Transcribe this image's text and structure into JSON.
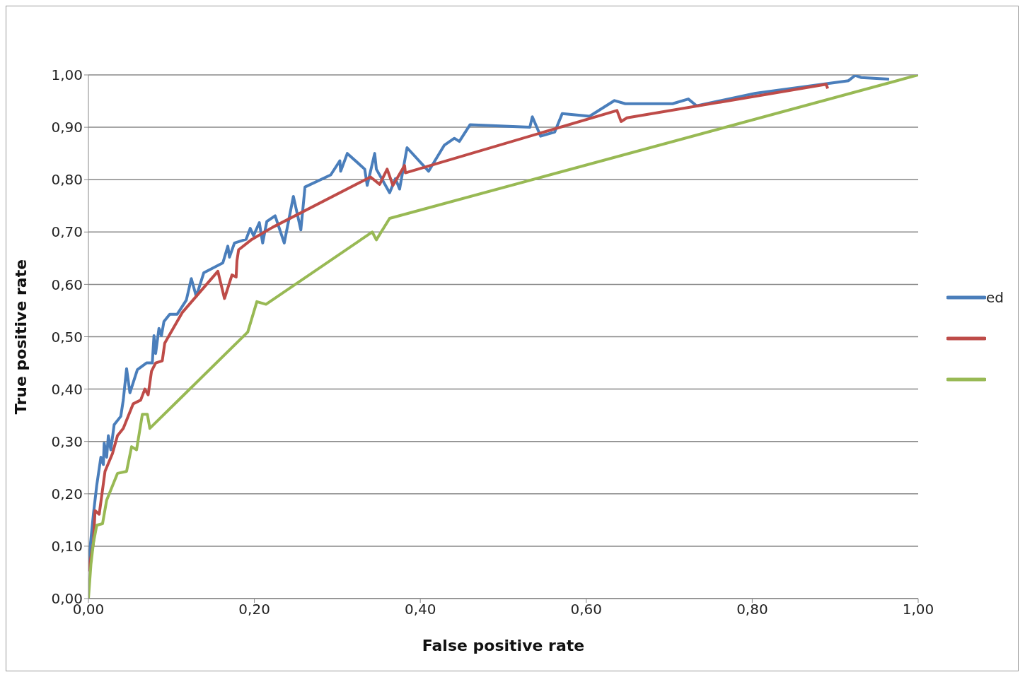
{
  "chart_data": {
    "type": "line",
    "xlabel": "False positive rate",
    "ylabel": "True positive rate",
    "xlim": [
      0,
      1
    ],
    "ylim": [
      0,
      1
    ],
    "xticks": [
      {
        "value": 0,
        "label": "0,00"
      },
      {
        "value": 0.2,
        "label": "0,20"
      },
      {
        "value": 0.4,
        "label": "0,40"
      },
      {
        "value": 0.6,
        "label": "0,60"
      },
      {
        "value": 0.8,
        "label": "0,80"
      },
      {
        "value": 1,
        "label": "1,00"
      }
    ],
    "yticks": [
      {
        "value": 0,
        "label": "0,00"
      },
      {
        "value": 0.1,
        "label": "0,10"
      },
      {
        "value": 0.2,
        "label": "0,20"
      },
      {
        "value": 0.3,
        "label": "0,30"
      },
      {
        "value": 0.4,
        "label": "0,40"
      },
      {
        "value": 0.5,
        "label": "0,50"
      },
      {
        "value": 0.6,
        "label": "0,60"
      },
      {
        "value": 0.7,
        "label": "0,70"
      },
      {
        "value": 0.8,
        "label": "0,80"
      },
      {
        "value": 0.9,
        "label": "0,90"
      },
      {
        "value": 1,
        "label": "1,00"
      }
    ],
    "grid": "y",
    "legend": "right",
    "marker": "none",
    "line_style": "solid",
    "series": [
      {
        "name": "ed",
        "color": "#4a7ebb",
        "x": [
          0,
          0.006,
          0.01,
          0.015,
          0.018,
          0.019,
          0.022,
          0.024,
          0.027,
          0.031,
          0.039,
          0.042,
          0.046,
          0.05,
          0.059,
          0.07,
          0.077,
          0.079,
          0.081,
          0.085,
          0.088,
          0.091,
          0.098,
          0.107,
          0.118,
          0.124,
          0.13,
          0.139,
          0.162,
          0.168,
          0.17,
          0.176,
          0.19,
          0.195,
          0.199,
          0.206,
          0.21,
          0.215,
          0.225,
          0.236,
          0.247,
          0.256,
          0.261,
          0.292,
          0.303,
          0.304,
          0.312,
          0.333,
          0.336,
          0.345,
          0.347,
          0.363,
          0.37,
          0.375,
          0.384,
          0.41,
          0.429,
          0.441,
          0.447,
          0.46,
          0.532,
          0.535,
          0.545,
          0.562,
          0.571,
          0.604,
          0.634,
          0.647,
          0.704,
          0.723,
          0.733,
          0.804,
          0.916,
          0.924,
          0.931,
          0.965
        ],
        "values": [
          0.065,
          0.161,
          0.216,
          0.27,
          0.256,
          0.297,
          0.27,
          0.311,
          0.284,
          0.332,
          0.348,
          0.379,
          0.439,
          0.393,
          0.437,
          0.45,
          0.45,
          0.502,
          0.468,
          0.516,
          0.502,
          0.529,
          0.543,
          0.543,
          0.57,
          0.611,
          0.577,
          0.622,
          0.641,
          0.673,
          0.652,
          0.679,
          0.686,
          0.707,
          0.693,
          0.718,
          0.679,
          0.72,
          0.731,
          0.679,
          0.768,
          0.704,
          0.786,
          0.809,
          0.836,
          0.816,
          0.85,
          0.82,
          0.789,
          0.85,
          0.82,
          0.775,
          0.802,
          0.782,
          0.861,
          0.816,
          0.866,
          0.879,
          0.873,
          0.905,
          0.9,
          0.92,
          0.883,
          0.891,
          0.926,
          0.921,
          0.951,
          0.945,
          0.945,
          0.954,
          0.941,
          0.965,
          0.989,
          0.999,
          0.995,
          0.992
        ]
      },
      {
        "color": "#be4b48",
        "x": [
          0,
          0.006,
          0.008,
          0.013,
          0.02,
          0.029,
          0.035,
          0.042,
          0.054,
          0.063,
          0.068,
          0.072,
          0.076,
          0.081,
          0.089,
          0.092,
          0.113,
          0.156,
          0.164,
          0.173,
          0.178,
          0.179,
          0.181,
          0.197,
          0.222,
          0.34,
          0.351,
          0.36,
          0.367,
          0.381,
          0.382,
          0.637,
          0.642,
          0.649,
          0.889,
          0.891
        ],
        "values": [
          0.052,
          0.106,
          0.168,
          0.161,
          0.243,
          0.277,
          0.311,
          0.325,
          0.372,
          0.379,
          0.4,
          0.389,
          0.434,
          0.45,
          0.454,
          0.488,
          0.546,
          0.625,
          0.573,
          0.618,
          0.614,
          0.645,
          0.666,
          0.686,
          0.709,
          0.805,
          0.791,
          0.82,
          0.789,
          0.827,
          0.813,
          0.932,
          0.911,
          0.918,
          0.982,
          0.974
        ]
      },
      {
        "color": "#98b954",
        "x": [
          0,
          0.003,
          0.006,
          0.01,
          0.017,
          0.022,
          0.035,
          0.046,
          0.052,
          0.058,
          0.065,
          0.071,
          0.074,
          0.192,
          0.203,
          0.214,
          0.342,
          0.347,
          0.363,
          1
        ],
        "values": [
          0,
          0.065,
          0.106,
          0.14,
          0.143,
          0.188,
          0.239,
          0.243,
          0.29,
          0.284,
          0.352,
          0.352,
          0.325,
          0.509,
          0.567,
          0.562,
          0.7,
          0.685,
          0.726,
          1
        ]
      }
    ]
  }
}
